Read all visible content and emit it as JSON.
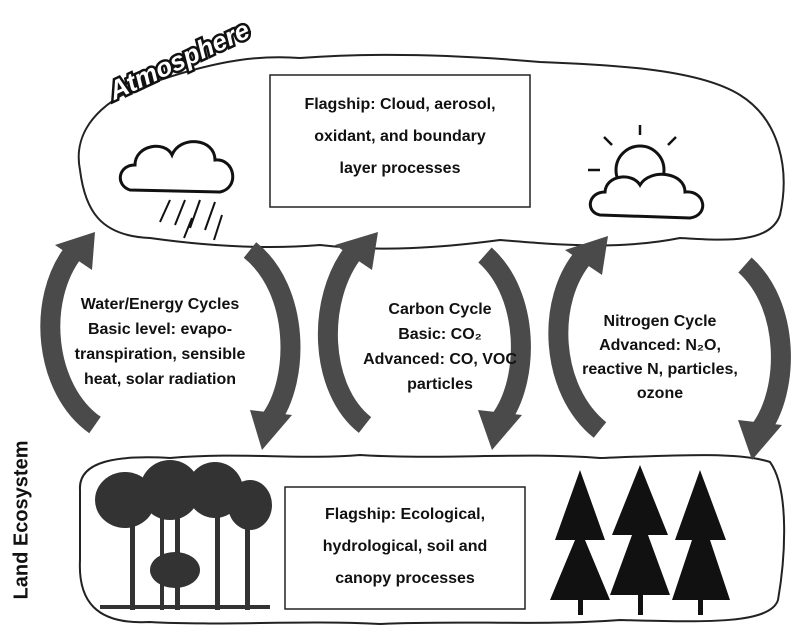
{
  "atmosphere": {
    "label": "Atmosphere",
    "flagship": [
      "Flagship: Cloud, aerosol,",
      "oxidant, and boundary",
      "layer processes"
    ]
  },
  "land": {
    "label": "Land Ecosystem",
    "flagship": [
      "Flagship: Ecological,",
      "hydrological, soil and",
      "canopy processes"
    ]
  },
  "cycles": [
    {
      "lines": [
        "Water/Energy Cycles",
        "Basic level: evapo-",
        "transpiration, sensible",
        "heat, solar radiation"
      ]
    },
    {
      "lines": [
        "Carbon Cycle",
        "Basic: CO₂",
        "Advanced: CO, VOC",
        "particles"
      ]
    },
    {
      "lines": [
        "Nitrogen Cycle",
        "Advanced: N₂O,",
        "reactive N, particles,",
        "ozone"
      ]
    }
  ]
}
